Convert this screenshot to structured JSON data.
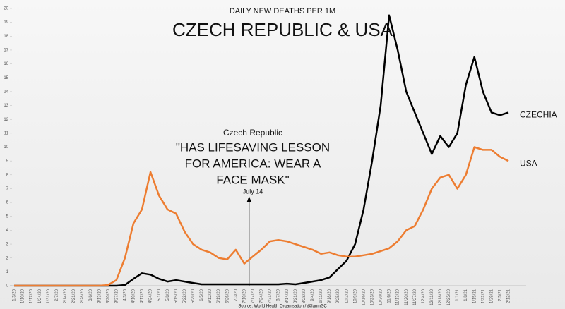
{
  "chart_data": {
    "type": "line",
    "subtitle": "DAILY NEW DEATHS PER 1M",
    "title": "CZECH REPUBLIC & USA",
    "source": "Source: World Health Organisation / @IanmSC",
    "annotation": {
      "heading": "Czech Republic",
      "lines": [
        "\"HAS LIFESAVING LESSON",
        "FOR AMERICA: WEAR A",
        "FACE MASK\""
      ],
      "label": "July 14"
    },
    "categories": [
      "1/3/20",
      "1/10/20",
      "1/17/20",
      "1/24/20",
      "1/31/20",
      "2/7/20",
      "2/14/20",
      "2/21/20",
      "2/28/20",
      "3/6/20",
      "3/13/20",
      "3/20/20",
      "3/27/20",
      "4/3/20",
      "4/10/20",
      "4/17/20",
      "4/24/20",
      "5/1/20",
      "5/8/20",
      "5/15/20",
      "5/22/20",
      "5/29/20",
      "6/5/20",
      "6/12/20",
      "6/19/20",
      "6/26/20",
      "7/3/20",
      "7/10/20",
      "7/17/20",
      "7/24/20",
      "7/31/20",
      "8/7/20",
      "8/14/20",
      "8/21/20",
      "8/28/20",
      "9/4/20",
      "9/11/20",
      "9/18/20",
      "9/25/20",
      "10/2/20",
      "10/9/20",
      "10/16/20",
      "10/23/20",
      "10/30/20",
      "11/6/20",
      "11/13/20",
      "11/20/20",
      "11/27/20",
      "12/4/20",
      "12/11/20",
      "12/18/20",
      "12/25/20",
      "1/1/21",
      "1/8/21",
      "1/15/21",
      "1/22/21",
      "1/29/21",
      "2/5/21",
      "2/12/21"
    ],
    "series": [
      {
        "name": "CZECHIA",
        "color": "#000000",
        "values": [
          0,
          0,
          0,
          0,
          0,
          0,
          0,
          0,
          0,
          0,
          0,
          0,
          0,
          0.05,
          0.5,
          0.9,
          0.8,
          0.5,
          0.3,
          0.4,
          0.3,
          0.2,
          0.1,
          0.1,
          0.1,
          0.1,
          0.1,
          0.1,
          0.1,
          0.1,
          0.1,
          0.1,
          0.15,
          0.1,
          0.2,
          0.3,
          0.4,
          0.6,
          1.2,
          1.8,
          3.0,
          5.5,
          9,
          13,
          19.5,
          17,
          14,
          12.5,
          11,
          9.5,
          10.8,
          10,
          11,
          14.5,
          16.5,
          14,
          12.5,
          12.3,
          12.5
        ]
      },
      {
        "name": "USA",
        "color": "#ed7d31",
        "values": [
          0,
          0,
          0,
          0,
          0,
          0,
          0,
          0,
          0,
          0,
          0,
          0.05,
          0.4,
          2,
          4.5,
          5.5,
          8.2,
          6.5,
          5.5,
          5.2,
          3.9,
          3.0,
          2.6,
          2.4,
          2.0,
          1.9,
          2.6,
          1.6,
          2.1,
          2.6,
          3.2,
          3.3,
          3.2,
          3.0,
          2.8,
          2.6,
          2.3,
          2.4,
          2.2,
          2.1,
          2.1,
          2.2,
          2.3,
          2.5,
          2.7,
          3.2,
          4.0,
          4.3,
          5.5,
          7.0,
          7.8,
          8.0,
          7.0,
          8.0,
          10.0,
          9.8,
          9.8,
          9.3,
          9.0
        ]
      }
    ],
    "ylim": [
      0,
      20
    ],
    "yticks": [
      0,
      1,
      2,
      3,
      4,
      5,
      6,
      7,
      8,
      9,
      10,
      11,
      12,
      13,
      14,
      15,
      16,
      17,
      18,
      19,
      20
    ],
    "grid": false
  }
}
